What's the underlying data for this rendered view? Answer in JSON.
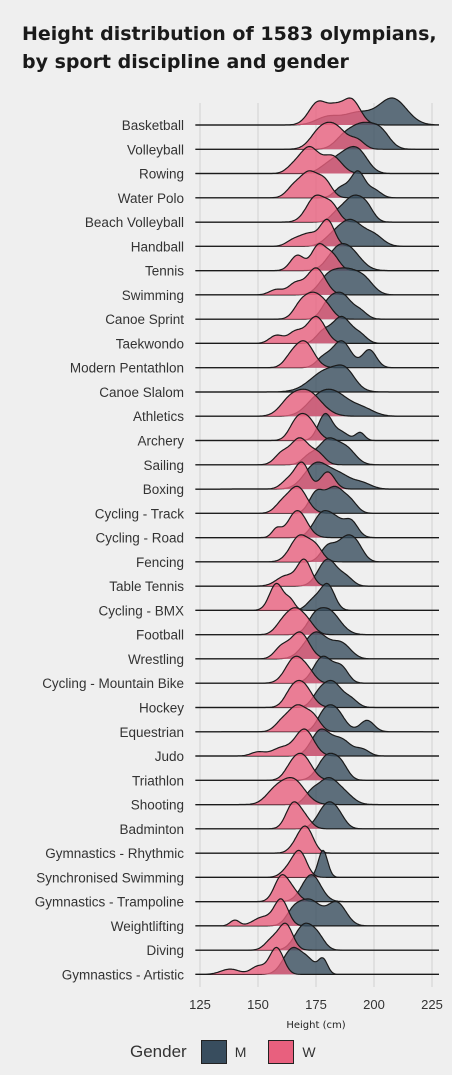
{
  "title_lines": [
    "Height distribution of 1583 olympians,",
    "by sport discipline and gender"
  ],
  "legend": {
    "title": "Gender",
    "items": [
      {
        "label": "M",
        "color": "#384d5e"
      },
      {
        "label": "W",
        "color": "#e8607e"
      }
    ]
  },
  "chart_data": {
    "type": "ridgeline",
    "xlabel": "Height (cm)",
    "ylabel": "",
    "xlim": [
      125,
      228
    ],
    "x_ticks": [
      125,
      150,
      175,
      200,
      225
    ],
    "grid": true,
    "legend_position": "bottom",
    "series_names": [
      "M",
      "W"
    ],
    "series_colors": {
      "M": "#384d5e",
      "W": "#e8607e"
    },
    "categories": [
      {
        "name": "Basketball",
        "M": [
          [
            208,
            6,
            1.0
          ],
          [
            193,
            6,
            0.45
          ],
          [
            180,
            5,
            0.3
          ]
        ],
        "W": [
          [
            190,
            4,
            0.9
          ],
          [
            176,
            4,
            0.8
          ],
          [
            183,
            3,
            0.4
          ]
        ]
      },
      {
        "name": "Volleyball",
        "M": [
          [
            195,
            5,
            0.9
          ],
          [
            203,
            4,
            0.6
          ],
          [
            187,
            4,
            0.4
          ]
        ],
        "W": [
          [
            183,
            5,
            0.9
          ],
          [
            176,
            4,
            0.5
          ],
          [
            193,
            3,
            0.3
          ]
        ]
      },
      {
        "name": "Rowing",
        "M": [
          [
            188,
            5,
            0.9
          ],
          [
            194,
            4,
            0.7
          ],
          [
            180,
            4,
            0.3
          ]
        ],
        "W": [
          [
            172,
            4,
            0.9
          ],
          [
            182,
            4,
            0.6
          ],
          [
            165,
            3,
            0.2
          ]
        ]
      },
      {
        "name": "Water Polo",
        "M": [
          [
            193,
            3,
            1.0
          ],
          [
            186,
            3,
            0.4
          ],
          [
            200,
            3,
            0.3
          ]
        ],
        "W": [
          [
            172,
            4,
            0.9
          ],
          [
            179,
            3,
            0.5
          ],
          [
            165,
            3,
            0.3
          ]
        ]
      },
      {
        "name": "Beach Volleyball",
        "M": [
          [
            191,
            4,
            1.0
          ],
          [
            197,
            3,
            0.5
          ],
          [
            184,
            3,
            0.3
          ]
        ],
        "W": [
          [
            175,
            4,
            0.9
          ],
          [
            182,
            3,
            0.5
          ]
        ]
      },
      {
        "name": "Handball",
        "M": [
          [
            190,
            5,
            1.0
          ],
          [
            200,
            4,
            0.4
          ],
          [
            182,
            4,
            0.3
          ]
        ],
        "W": [
          [
            180,
            3,
            1.0
          ],
          [
            172,
            4,
            0.5
          ],
          [
            165,
            3,
            0.2
          ]
        ]
      },
      {
        "name": "Tennis",
        "M": [
          [
            189,
            5,
            0.9
          ],
          [
            183,
            4,
            0.5
          ]
        ],
        "W": [
          [
            176,
            3,
            0.8
          ],
          [
            167,
            3,
            0.5
          ],
          [
            182,
            3,
            0.5
          ]
        ]
      },
      {
        "name": "Swimming",
        "M": [
          [
            188,
            5,
            0.9
          ],
          [
            180,
            4,
            0.6
          ],
          [
            196,
            4,
            0.5
          ]
        ],
        "W": [
          [
            175,
            4,
            1.0
          ],
          [
            166,
            3,
            0.4
          ],
          [
            158,
            3,
            0.2
          ]
        ]
      },
      {
        "name": "Canoe Sprint",
        "M": [
          [
            186,
            4,
            1.0
          ],
          [
            180,
            3,
            0.5
          ],
          [
            194,
            3,
            0.3
          ]
        ],
        "W": [
          [
            174,
            4,
            0.9
          ],
          [
            168,
            3,
            0.4
          ],
          [
            180,
            3,
            0.3
          ]
        ]
      },
      {
        "name": "Taekwondo",
        "M": [
          [
            186,
            4,
            1.0
          ],
          [
            178,
            3,
            0.4
          ],
          [
            194,
            3,
            0.3
          ]
        ],
        "W": [
          [
            175,
            4,
            1.0
          ],
          [
            166,
            3,
            0.4
          ],
          [
            158,
            3,
            0.3
          ]
        ]
      },
      {
        "name": "Modern Pentathlon",
        "M": [
          [
            186,
            4,
            0.9
          ],
          [
            198,
            3,
            0.6
          ],
          [
            178,
            3,
            0.3
          ]
        ],
        "W": [
          [
            170,
            4,
            1.0
          ],
          [
            164,
            3,
            0.3
          ]
        ]
      },
      {
        "name": "Canoe Slalom",
        "M": [
          [
            180,
            7,
            0.5
          ],
          [
            188,
            4,
            0.3
          ]
        ],
        "W": [
          [
            0,
            1,
            0
          ]
        ]
      },
      {
        "name": "Athletics",
        "M": [
          [
            183,
            6,
            0.9
          ],
          [
            175,
            5,
            0.5
          ],
          [
            195,
            5,
            0.3
          ]
        ],
        "W": [
          [
            171,
            6,
            0.8
          ],
          [
            163,
            4,
            0.3
          ]
        ]
      },
      {
        "name": "Archery",
        "M": [
          [
            179,
            3,
            1.0
          ],
          [
            194,
            2,
            0.3
          ],
          [
            186,
            3,
            0.3
          ]
        ],
        "W": [
          [
            171,
            4,
            0.8
          ],
          [
            166,
            3,
            0.4
          ]
        ]
      },
      {
        "name": "Sailing",
        "M": [
          [
            180,
            4,
            0.9
          ],
          [
            188,
            4,
            0.6
          ],
          [
            172,
            3,
            0.3
          ]
        ],
        "W": [
          [
            168,
            4,
            0.8
          ],
          [
            160,
            3,
            0.3
          ],
          [
            176,
            3,
            0.3
          ]
        ]
      },
      {
        "name": "Boxing",
        "M": [
          [
            175,
            5,
            0.9
          ],
          [
            185,
            5,
            0.5
          ],
          [
            195,
            4,
            0.2
          ]
        ],
        "W": [
          [
            169,
            3,
            0.9
          ],
          [
            180,
            3,
            0.6
          ],
          [
            163,
            3,
            0.3
          ]
        ]
      },
      {
        "name": "Cycling - Track",
        "M": [
          [
            183,
            4,
            0.8
          ],
          [
            175,
            3,
            0.6
          ],
          [
            190,
            3,
            0.3
          ]
        ],
        "W": [
          [
            167,
            4,
            1.0
          ],
          [
            160,
            3,
            0.3
          ]
        ]
      },
      {
        "name": "Cycling - Road",
        "M": [
          [
            178,
            4,
            0.9
          ],
          [
            190,
            3,
            0.6
          ],
          [
            184,
            3,
            0.4
          ]
        ],
        "W": [
          [
            167,
            4,
            1.0
          ],
          [
            158,
            2,
            0.3
          ]
        ]
      },
      {
        "name": "Fencing",
        "M": [
          [
            188,
            4,
            1.0
          ],
          [
            180,
            3,
            0.6
          ],
          [
            193,
            3,
            0.4
          ]
        ],
        "W": [
          [
            168,
            4,
            1.0
          ],
          [
            175,
            3,
            0.5
          ]
        ]
      },
      {
        "name": "Table Tennis",
        "M": [
          [
            180,
            4,
            1.0
          ],
          [
            188,
            3,
            0.3
          ]
        ],
        "W": [
          [
            170,
            3,
            1.0
          ],
          [
            162,
            4,
            0.4
          ]
        ]
      },
      {
        "name": "Cycling - BMX",
        "M": [
          [
            180,
            3,
            1.0
          ],
          [
            174,
            3,
            0.4
          ]
        ],
        "W": [
          [
            158,
            3,
            0.9
          ],
          [
            164,
            2,
            0.3
          ]
        ]
      },
      {
        "name": "Football",
        "M": [
          [
            180,
            5,
            0.8
          ],
          [
            174,
            3,
            0.3
          ]
        ],
        "W": [
          [
            166,
            4,
            1.0
          ],
          [
            160,
            3,
            0.3
          ],
          [
            172,
            3,
            0.3
          ]
        ]
      },
      {
        "name": "Wrestling",
        "M": [
          [
            175,
            5,
            0.9
          ],
          [
            186,
            4,
            0.5
          ]
        ],
        "W": [
          [
            168,
            4,
            1.0
          ],
          [
            160,
            3,
            0.4
          ]
        ]
      },
      {
        "name": "Cycling - Mountain Bike",
        "M": [
          [
            178,
            4,
            0.9
          ],
          [
            186,
            3,
            0.5
          ]
        ],
        "W": [
          [
            166,
            4,
            1.0
          ],
          [
            172,
            3,
            0.3
          ]
        ]
      },
      {
        "name": "Hockey",
        "M": [
          [
            182,
            4,
            1.0
          ],
          [
            176,
            3,
            0.4
          ],
          [
            190,
            3,
            0.3
          ]
        ],
        "W": [
          [
            169,
            4,
            1.0
          ],
          [
            164,
            3,
            0.4
          ]
        ]
      },
      {
        "name": "Equestrian",
        "M": [
          [
            183,
            4,
            0.8
          ],
          [
            197,
            3,
            0.4
          ],
          [
            178,
            3,
            0.4
          ]
        ],
        "W": [
          [
            167,
            4,
            1.0
          ],
          [
            174,
            3,
            0.5
          ],
          [
            160,
            3,
            0.3
          ]
        ]
      },
      {
        "name": "Judo",
        "M": [
          [
            177,
            4,
            0.8
          ],
          [
            186,
            4,
            0.5
          ],
          [
            195,
            3,
            0.2
          ]
        ],
        "W": [
          [
            170,
            4,
            1.0
          ],
          [
            160,
            4,
            0.3
          ],
          [
            150,
            3,
            0.15
          ]
        ]
      },
      {
        "name": "Triathlon",
        "M": [
          [
            180,
            4,
            0.8
          ],
          [
            186,
            3,
            0.4
          ]
        ],
        "W": [
          [
            169,
            4,
            1.0
          ],
          [
            164,
            3,
            0.3
          ]
        ]
      },
      {
        "name": "Shooting",
        "M": [
          [
            180,
            4,
            0.9
          ],
          [
            187,
            4,
            0.4
          ],
          [
            173,
            3,
            0.4
          ]
        ],
        "W": [
          [
            165,
            5,
            0.9
          ],
          [
            157,
            4,
            0.4
          ]
        ]
      },
      {
        "name": "Badminton",
        "M": [
          [
            180,
            4,
            1.0
          ],
          [
            185,
            3,
            0.3
          ]
        ],
        "W": [
          [
            165,
            3,
            0.9
          ],
          [
            170,
            3,
            0.4
          ]
        ]
      },
      {
        "name": "Gymnastics - Rhythmic",
        "M": [
          [
            0,
            1,
            0
          ]
        ],
        "W": [
          [
            171,
            3,
            1.0
          ],
          [
            167,
            3,
            0.4
          ]
        ]
      },
      {
        "name": "Synchronised Swimming",
        "M": [
          [
            178,
            2,
            1.0
          ]
        ],
        "W": [
          [
            168,
            3,
            1.0
          ],
          [
            163,
            3,
            0.3
          ]
        ]
      },
      {
        "name": "Gymnastics - Trampoline",
        "M": [
          [
            173,
            4,
            0.9
          ]
        ],
        "W": [
          [
            160,
            3,
            1.0
          ],
          [
            165,
            3,
            0.4
          ]
        ]
      },
      {
        "name": "Weightlifting",
        "M": [
          [
            172,
            5,
            0.8
          ],
          [
            184,
            4,
            0.7
          ],
          [
            165,
            3,
            0.3
          ]
        ],
        "W": [
          [
            160,
            3,
            0.9
          ],
          [
            152,
            4,
            0.3
          ],
          [
            140,
            2,
            0.2
          ]
        ]
      },
      {
        "name": "Diving",
        "M": [
          [
            170,
            4,
            1.0
          ],
          [
            176,
            3,
            0.4
          ]
        ],
        "W": [
          [
            162,
            3,
            1.0
          ],
          [
            156,
            3,
            0.4
          ]
        ]
      },
      {
        "name": "Gymnastics - Artistic",
        "M": [
          [
            165,
            4,
            0.7
          ],
          [
            178,
            2,
            0.4
          ],
          [
            172,
            3,
            0.3
          ]
        ],
        "W": [
          [
            158,
            3,
            1.0
          ],
          [
            150,
            3,
            0.3
          ],
          [
            138,
            4,
            0.2
          ]
        ]
      }
    ]
  }
}
